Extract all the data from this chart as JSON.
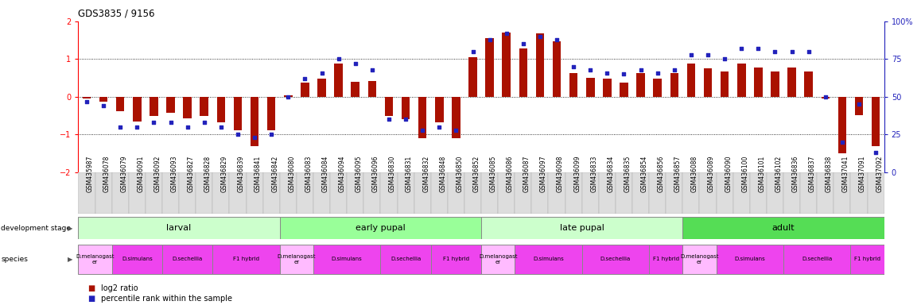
{
  "title": "GDS3835 / 9156",
  "samples": [
    "GSM435987",
    "GSM436078",
    "GSM436079",
    "GSM436091",
    "GSM436092",
    "GSM436093",
    "GSM436827",
    "GSM436828",
    "GSM436829",
    "GSM436839",
    "GSM436841",
    "GSM436842",
    "GSM436080",
    "GSM436083",
    "GSM436084",
    "GSM436094",
    "GSM436095",
    "GSM436096",
    "GSM436830",
    "GSM436831",
    "GSM436832",
    "GSM436848",
    "GSM436850",
    "GSM436852",
    "GSM436085",
    "GSM436086",
    "GSM436087",
    "GSM436097",
    "GSM436098",
    "GSM436099",
    "GSM436833",
    "GSM436834",
    "GSM436835",
    "GSM436854",
    "GSM436856",
    "GSM436857",
    "GSM436088",
    "GSM436089",
    "GSM436090",
    "GSM436100",
    "GSM436101",
    "GSM436102",
    "GSM436836",
    "GSM436837",
    "GSM436838",
    "GSM437041",
    "GSM437091",
    "GSM437092"
  ],
  "log2_ratio": [
    -0.05,
    -0.12,
    -0.38,
    -0.65,
    -0.5,
    -0.42,
    -0.58,
    -0.5,
    -0.68,
    -0.88,
    -1.3,
    -0.88,
    0.04,
    0.38,
    0.48,
    0.88,
    0.4,
    0.42,
    -0.5,
    -0.6,
    -1.1,
    -0.68,
    -1.1,
    1.05,
    1.55,
    1.7,
    1.28,
    1.68,
    1.48,
    0.62,
    0.5,
    0.48,
    0.38,
    0.62,
    0.48,
    0.62,
    0.88,
    0.75,
    0.68,
    0.88,
    0.78,
    0.68,
    0.78,
    0.68,
    -0.05,
    -1.5,
    -0.48,
    -1.3
  ],
  "percentile": [
    47,
    44,
    30,
    30,
    33,
    33,
    30,
    33,
    30,
    25,
    23,
    25,
    50,
    62,
    66,
    75,
    72,
    68,
    35,
    35,
    28,
    30,
    28,
    80,
    88,
    92,
    85,
    90,
    88,
    70,
    68,
    66,
    65,
    68,
    66,
    68,
    78,
    78,
    75,
    82,
    82,
    80,
    80,
    80,
    50,
    20,
    45,
    13
  ],
  "bar_color": "#aa1100",
  "dot_color": "#2222bb",
  "ylim_left": [
    -2,
    2
  ],
  "yticks_left": [
    -2,
    -1,
    0,
    1,
    2
  ],
  "yticks_right": [
    0,
    25,
    50,
    75,
    100
  ],
  "hline_values": [
    -1,
    0,
    1
  ],
  "development_stages": [
    {
      "label": "larval",
      "start": 0,
      "end": 11,
      "color": "#ccffcc"
    },
    {
      "label": "early pupal",
      "start": 12,
      "end": 23,
      "color": "#99ff99"
    },
    {
      "label": "late pupal",
      "start": 24,
      "end": 35,
      "color": "#ccffcc"
    },
    {
      "label": "adult",
      "start": 36,
      "end": 47,
      "color": "#55dd55"
    }
  ],
  "species_groups": [
    {
      "label": "D.melanogast\ner",
      "start": 0,
      "end": 1,
      "color": "#ffbbff"
    },
    {
      "label": "D.simulans",
      "start": 2,
      "end": 4,
      "color": "#ee44ee"
    },
    {
      "label": "D.sechellia",
      "start": 5,
      "end": 7,
      "color": "#ee44ee"
    },
    {
      "label": "F1 hybrid",
      "start": 8,
      "end": 11,
      "color": "#ee44ee"
    },
    {
      "label": "D.melanogast\ner",
      "start": 12,
      "end": 13,
      "color": "#ffbbff"
    },
    {
      "label": "D.simulans",
      "start": 14,
      "end": 17,
      "color": "#ee44ee"
    },
    {
      "label": "D.sechellia",
      "start": 18,
      "end": 20,
      "color": "#ee44ee"
    },
    {
      "label": "F1 hybrid",
      "start": 21,
      "end": 23,
      "color": "#ee44ee"
    },
    {
      "label": "D.melanogast\ner",
      "start": 24,
      "end": 25,
      "color": "#ffbbff"
    },
    {
      "label": "D.simulans",
      "start": 26,
      "end": 29,
      "color": "#ee44ee"
    },
    {
      "label": "D.sechellia",
      "start": 30,
      "end": 33,
      "color": "#ee44ee"
    },
    {
      "label": "F1 hybrid",
      "start": 34,
      "end": 35,
      "color": "#ee44ee"
    },
    {
      "label": "D.melanogast\ner",
      "start": 36,
      "end": 37,
      "color": "#ffbbff"
    },
    {
      "label": "D.simulans",
      "start": 38,
      "end": 41,
      "color": "#ee44ee"
    },
    {
      "label": "D.sechellia",
      "start": 42,
      "end": 45,
      "color": "#ee44ee"
    },
    {
      "label": "F1 hybrid",
      "start": 46,
      "end": 47,
      "color": "#ee44ee"
    }
  ],
  "right_axis_color": "#2222bb",
  "tick_label_fontsize": 5.5,
  "bar_width": 0.5,
  "xticklabel_bg": "#dddddd"
}
